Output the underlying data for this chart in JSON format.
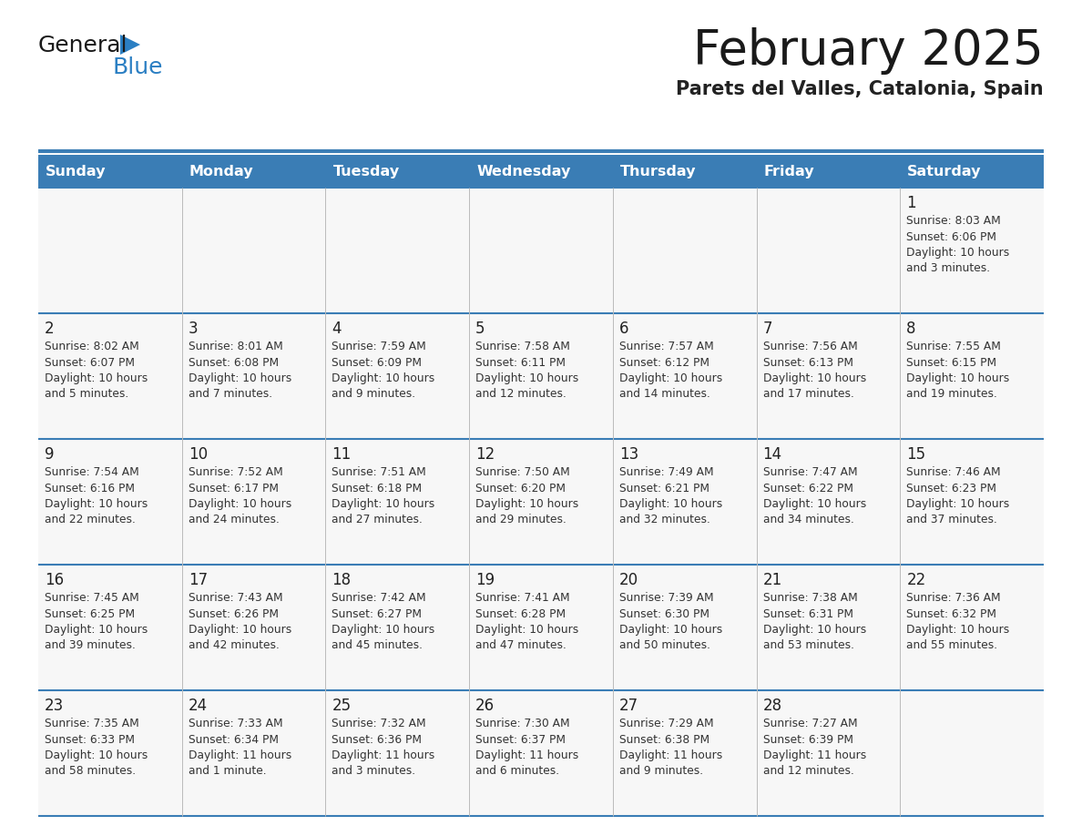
{
  "title": "February 2025",
  "subtitle": "Parets del Valles, Catalonia, Spain",
  "days_of_week": [
    "Sunday",
    "Monday",
    "Tuesday",
    "Wednesday",
    "Thursday",
    "Friday",
    "Saturday"
  ],
  "header_bg": "#3a7db5",
  "header_text_color": "#ffffff",
  "separator_color": "#3a7db5",
  "title_color": "#1a1a1a",
  "subtitle_color": "#222222",
  "logo_general_color": "#1a1a1a",
  "logo_blue_color": "#2b7fc3",
  "cell_bg": "#f7f7f7",
  "calendar_data": [
    {
      "day": 1,
      "col": 6,
      "row": 0,
      "sunrise": "8:03 AM",
      "sunset": "6:06 PM",
      "daylight": "10 hours and 3 minutes."
    },
    {
      "day": 2,
      "col": 0,
      "row": 1,
      "sunrise": "8:02 AM",
      "sunset": "6:07 PM",
      "daylight": "10 hours and 5 minutes."
    },
    {
      "day": 3,
      "col": 1,
      "row": 1,
      "sunrise": "8:01 AM",
      "sunset": "6:08 PM",
      "daylight": "10 hours and 7 minutes."
    },
    {
      "day": 4,
      "col": 2,
      "row": 1,
      "sunrise": "7:59 AM",
      "sunset": "6:09 PM",
      "daylight": "10 hours and 9 minutes."
    },
    {
      "day": 5,
      "col": 3,
      "row": 1,
      "sunrise": "7:58 AM",
      "sunset": "6:11 PM",
      "daylight": "10 hours and 12 minutes."
    },
    {
      "day": 6,
      "col": 4,
      "row": 1,
      "sunrise": "7:57 AM",
      "sunset": "6:12 PM",
      "daylight": "10 hours and 14 minutes."
    },
    {
      "day": 7,
      "col": 5,
      "row": 1,
      "sunrise": "7:56 AM",
      "sunset": "6:13 PM",
      "daylight": "10 hours and 17 minutes."
    },
    {
      "day": 8,
      "col": 6,
      "row": 1,
      "sunrise": "7:55 AM",
      "sunset": "6:15 PM",
      "daylight": "10 hours and 19 minutes."
    },
    {
      "day": 9,
      "col": 0,
      "row": 2,
      "sunrise": "7:54 AM",
      "sunset": "6:16 PM",
      "daylight": "10 hours and 22 minutes."
    },
    {
      "day": 10,
      "col": 1,
      "row": 2,
      "sunrise": "7:52 AM",
      "sunset": "6:17 PM",
      "daylight": "10 hours and 24 minutes."
    },
    {
      "day": 11,
      "col": 2,
      "row": 2,
      "sunrise": "7:51 AM",
      "sunset": "6:18 PM",
      "daylight": "10 hours and 27 minutes."
    },
    {
      "day": 12,
      "col": 3,
      "row": 2,
      "sunrise": "7:50 AM",
      "sunset": "6:20 PM",
      "daylight": "10 hours and 29 minutes."
    },
    {
      "day": 13,
      "col": 4,
      "row": 2,
      "sunrise": "7:49 AM",
      "sunset": "6:21 PM",
      "daylight": "10 hours and 32 minutes."
    },
    {
      "day": 14,
      "col": 5,
      "row": 2,
      "sunrise": "7:47 AM",
      "sunset": "6:22 PM",
      "daylight": "10 hours and 34 minutes."
    },
    {
      "day": 15,
      "col": 6,
      "row": 2,
      "sunrise": "7:46 AM",
      "sunset": "6:23 PM",
      "daylight": "10 hours and 37 minutes."
    },
    {
      "day": 16,
      "col": 0,
      "row": 3,
      "sunrise": "7:45 AM",
      "sunset": "6:25 PM",
      "daylight": "10 hours and 39 minutes."
    },
    {
      "day": 17,
      "col": 1,
      "row": 3,
      "sunrise": "7:43 AM",
      "sunset": "6:26 PM",
      "daylight": "10 hours and 42 minutes."
    },
    {
      "day": 18,
      "col": 2,
      "row": 3,
      "sunrise": "7:42 AM",
      "sunset": "6:27 PM",
      "daylight": "10 hours and 45 minutes."
    },
    {
      "day": 19,
      "col": 3,
      "row": 3,
      "sunrise": "7:41 AM",
      "sunset": "6:28 PM",
      "daylight": "10 hours and 47 minutes."
    },
    {
      "day": 20,
      "col": 4,
      "row": 3,
      "sunrise": "7:39 AM",
      "sunset": "6:30 PM",
      "daylight": "10 hours and 50 minutes."
    },
    {
      "day": 21,
      "col": 5,
      "row": 3,
      "sunrise": "7:38 AM",
      "sunset": "6:31 PM",
      "daylight": "10 hours and 53 minutes."
    },
    {
      "day": 22,
      "col": 6,
      "row": 3,
      "sunrise": "7:36 AM",
      "sunset": "6:32 PM",
      "daylight": "10 hours and 55 minutes."
    },
    {
      "day": 23,
      "col": 0,
      "row": 4,
      "sunrise": "7:35 AM",
      "sunset": "6:33 PM",
      "daylight": "10 hours and 58 minutes."
    },
    {
      "day": 24,
      "col": 1,
      "row": 4,
      "sunrise": "7:33 AM",
      "sunset": "6:34 PM",
      "daylight": "11 hours and 1 minute."
    },
    {
      "day": 25,
      "col": 2,
      "row": 4,
      "sunrise": "7:32 AM",
      "sunset": "6:36 PM",
      "daylight": "11 hours and 3 minutes."
    },
    {
      "day": 26,
      "col": 3,
      "row": 4,
      "sunrise": "7:30 AM",
      "sunset": "6:37 PM",
      "daylight": "11 hours and 6 minutes."
    },
    {
      "day": 27,
      "col": 4,
      "row": 4,
      "sunrise": "7:29 AM",
      "sunset": "6:38 PM",
      "daylight": "11 hours and 9 minutes."
    },
    {
      "day": 28,
      "col": 5,
      "row": 4,
      "sunrise": "7:27 AM",
      "sunset": "6:39 PM",
      "daylight": "11 hours and 12 minutes."
    }
  ]
}
